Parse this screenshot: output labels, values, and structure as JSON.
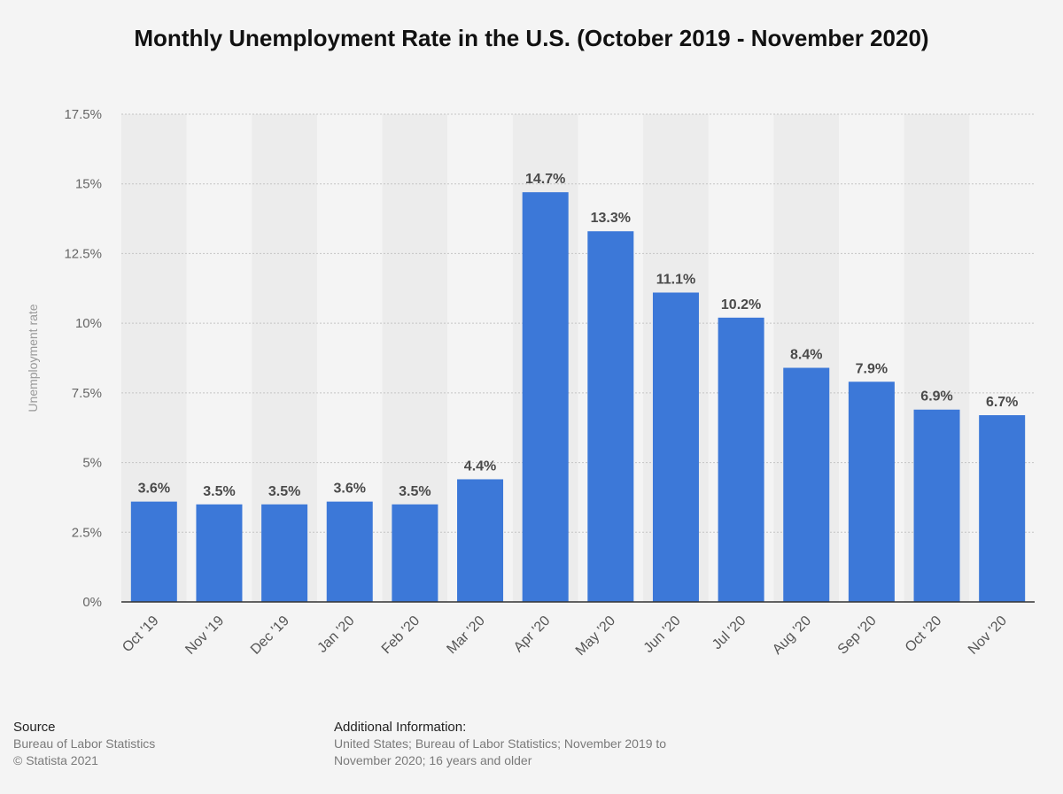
{
  "title": "Monthly Unemployment Rate in the U.S. (October 2019 - November 2020)",
  "chart_data": {
    "type": "bar",
    "categories": [
      "Oct '19",
      "Nov '19",
      "Dec '19",
      "Jan '20",
      "Feb '20",
      "Mar '20",
      "Apr '20",
      "May '20",
      "Jun '20",
      "Jul '20",
      "Aug '20",
      "Sep '20",
      "Oct '20",
      "Nov '20"
    ],
    "values": [
      3.6,
      3.5,
      3.5,
      3.6,
      3.5,
      4.4,
      14.7,
      13.3,
      11.1,
      10.2,
      8.4,
      7.9,
      6.9,
      6.7
    ],
    "value_labels": [
      "3.6%",
      "3.5%",
      "3.5%",
      "3.6%",
      "3.5%",
      "4.4%",
      "14.7%",
      "13.3%",
      "11.1%",
      "10.2%",
      "8.4%",
      "7.9%",
      "6.9%",
      "6.7%"
    ],
    "ylabel": "Unemployment rate",
    "xlabel": "",
    "ylim": [
      0,
      17.5
    ],
    "yticks": [
      0,
      2.5,
      5,
      7.5,
      10,
      12.5,
      15,
      17.5
    ],
    "ytick_labels": [
      "0%",
      "2.5%",
      "5%",
      "7.5%",
      "10%",
      "12.5%",
      "15%",
      "17.5%"
    ],
    "grid": true,
    "bar_color": "#3c78d8"
  },
  "footer": {
    "source_heading": "Source",
    "source_lines": [
      "Bureau of Labor Statistics",
      "© Statista 2021"
    ],
    "additional_heading": "Additional Information:",
    "additional_lines": [
      "United States; Bureau of Labor Statistics; November 2019 to",
      "November 2020; 16 years and older"
    ]
  }
}
